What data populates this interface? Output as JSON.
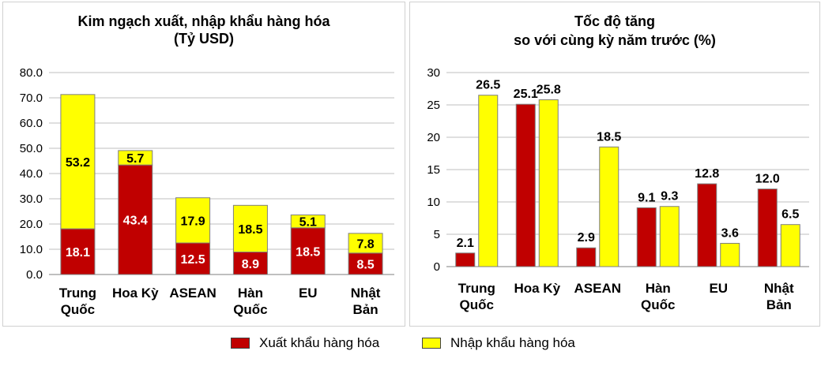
{
  "legend": {
    "export_label": "Xuất khẩu hàng hóa",
    "import_label": "Nhập khẩu hàng hóa"
  },
  "colors": {
    "export": "#c00000",
    "import": "#ffff00",
    "grid": "#bfbfbf"
  },
  "chart_data": [
    {
      "type": "bar",
      "stacked": true,
      "title_line1": "Kim ngạch xuất, nhập khẩu hàng hóa",
      "title_line2": "(Tỷ USD)",
      "categories": [
        [
          "Trung",
          "Quốc"
        ],
        [
          "Hoa Kỳ"
        ],
        [
          "ASEAN"
        ],
        [
          "Hàn",
          "Quốc"
        ],
        [
          "EU"
        ],
        [
          "Nhật",
          "Bản"
        ]
      ],
      "series": [
        {
          "name": "Xuất khẩu hàng hóa",
          "values": [
            18.1,
            43.4,
            12.5,
            8.9,
            18.5,
            8.5
          ]
        },
        {
          "name": "Nhập khẩu hàng hóa",
          "values": [
            53.2,
            5.7,
            17.9,
            18.5,
            5.1,
            7.8
          ]
        }
      ],
      "ylim": [
        0,
        80
      ],
      "yticks": [
        "0.0",
        "10.0",
        "20.0",
        "30.0",
        "40.0",
        "50.0",
        "60.0",
        "70.0",
        "80.0"
      ],
      "grid": true
    },
    {
      "type": "bar",
      "stacked": false,
      "title_line1": "Tốc độ tăng",
      "title_line2": "so với cùng kỳ năm trước (%)",
      "categories": [
        [
          "Trung",
          "Quốc"
        ],
        [
          "Hoa Kỳ"
        ],
        [
          "ASEAN"
        ],
        [
          "Hàn",
          "Quốc"
        ],
        [
          "EU"
        ],
        [
          "Nhật",
          "Bản"
        ]
      ],
      "series": [
        {
          "name": "Xuất khẩu hàng hóa",
          "values": [
            2.1,
            25.1,
            2.9,
            9.1,
            12.8,
            12.0
          ],
          "labels": [
            "2.1",
            "25.1",
            "2.9",
            "9.1",
            "12.8",
            "12.0"
          ]
        },
        {
          "name": "Nhập khẩu hàng hóa",
          "values": [
            26.5,
            25.8,
            18.5,
            9.3,
            3.6,
            6.5
          ],
          "labels": [
            "26.5",
            "25.8",
            "18.5",
            "9.3",
            "3.6",
            "6.5"
          ]
        }
      ],
      "ylim": [
        0,
        30
      ],
      "yticks": [
        "0",
        "5",
        "10",
        "15",
        "20",
        "25",
        "30"
      ],
      "grid": true
    }
  ]
}
